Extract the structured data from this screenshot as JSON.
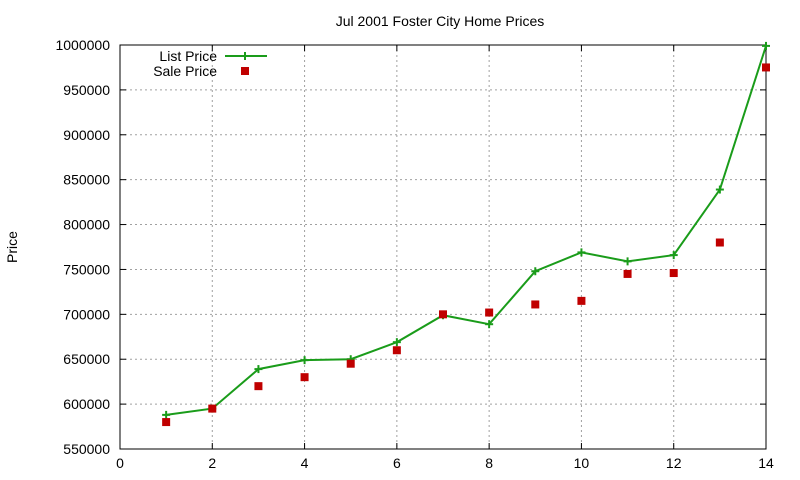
{
  "chart_data": {
    "type": "scatter",
    "title": "Jul 2001 Foster City Home Prices",
    "xlabel": "",
    "ylabel": "Price",
    "xlim": [
      0,
      14
    ],
    "ylim": [
      550000,
      1000000
    ],
    "x_ticks": [
      0,
      2,
      4,
      6,
      8,
      10,
      12,
      14
    ],
    "y_ticks": [
      550000,
      600000,
      650000,
      700000,
      750000,
      800000,
      850000,
      900000,
      950000,
      1000000
    ],
    "grid": true,
    "legend_position": "top-left",
    "series": [
      {
        "name": "List Price",
        "style": "line+cross",
        "color": "#1a9c1a",
        "x": [
          1,
          2,
          3,
          4,
          5,
          6,
          7,
          8,
          9,
          10,
          11,
          12,
          13,
          14
        ],
        "values": [
          588000,
          595000,
          639000,
          649000,
          650000,
          669000,
          699000,
          689000,
          748000,
          769000,
          759000,
          766000,
          839000,
          999000
        ]
      },
      {
        "name": "Sale Price",
        "style": "square",
        "color": "#c00000",
        "x": [
          1,
          2,
          3,
          4,
          5,
          6,
          7,
          8,
          9,
          10,
          11,
          12,
          13,
          14
        ],
        "values": [
          580000,
          595000,
          620000,
          630000,
          645000,
          660000,
          700000,
          702000,
          711000,
          715000,
          745000,
          746000,
          780000,
          975000
        ]
      }
    ]
  }
}
